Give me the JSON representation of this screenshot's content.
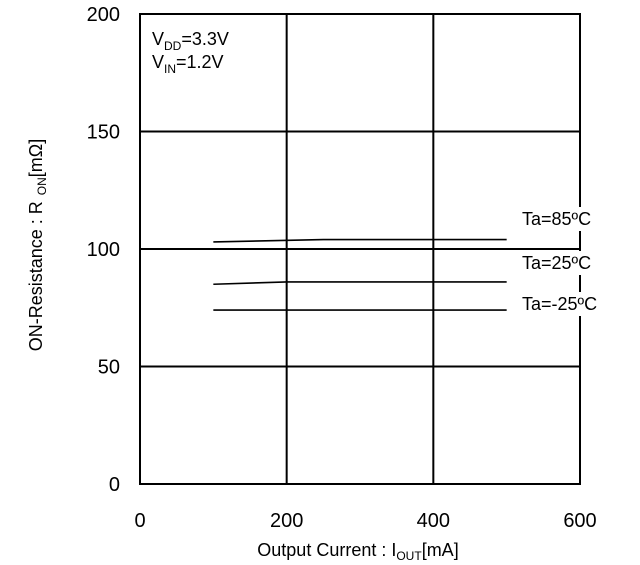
{
  "chart_data": {
    "type": "line",
    "xlabel": {
      "main": "Output Current : I",
      "sub": "OUT",
      "unit": "[mA]"
    },
    "ylabel": {
      "main": "ON-Resistance : R",
      "sub": "ON",
      "unit": "[mΩ]"
    },
    "xlim": [
      0,
      600
    ],
    "ylim": [
      0,
      200
    ],
    "x_ticks": [
      "0",
      "200",
      "400",
      "600"
    ],
    "y_ticks": [
      "0",
      "50",
      "100",
      "150",
      "200"
    ],
    "grid": true,
    "annotations": [
      {
        "main": "V",
        "sub": "DD",
        "rest": "=3.3V"
      },
      {
        "main": "V",
        "sub": "IN",
        "rest": "=1.2V"
      }
    ],
    "series": [
      {
        "name": "Ta=85ºC",
        "x": [
          100,
          250,
          500
        ],
        "y": [
          103,
          104,
          104
        ]
      },
      {
        "name": "Ta=25ºC",
        "x": [
          100,
          200,
          500
        ],
        "y": [
          85,
          86,
          86
        ]
      },
      {
        "name": "Ta=-25ºC",
        "x": [
          100,
          500
        ],
        "y": [
          74,
          74
        ]
      }
    ]
  }
}
